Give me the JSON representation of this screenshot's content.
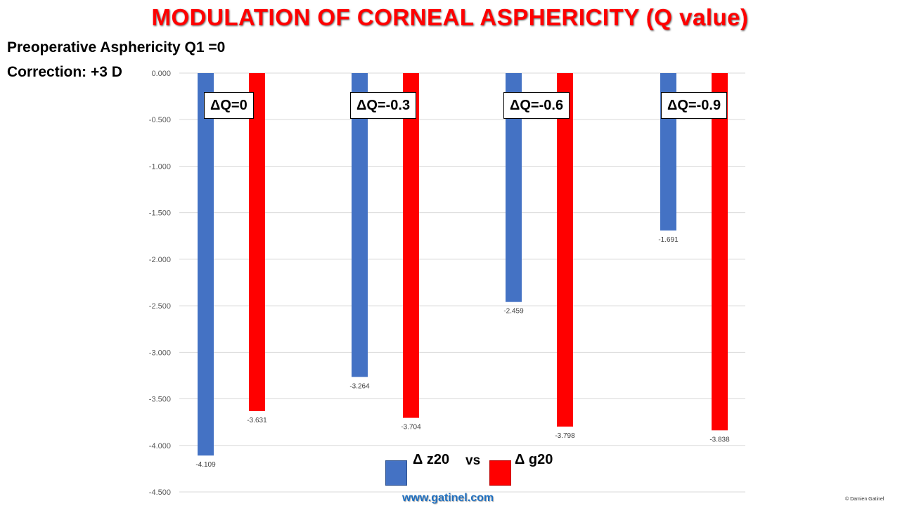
{
  "title": "MODULATION OF CORNEAL ASPHERICITY (Q value)",
  "subtitle_lines": [
    "Preoperative Asphericity Q1 =0",
    "Correction: +3 D"
  ],
  "footer": {
    "website": "www.gatinel.com",
    "copyright": "© Damien Gatinel"
  },
  "legend": {
    "series1": "Δ z20",
    "vs": "vs",
    "series2": "Δ g20"
  },
  "colors": {
    "z20": "#4472c4",
    "g20": "#ff0000",
    "title": "#ff0000",
    "website": "#1f70c1",
    "grid": "#d9d9d9"
  },
  "chart_data": {
    "type": "bar",
    "title": "MODULATION OF CORNEAL ASPHERICITY (Q value)",
    "categories": [
      "ΔQ=0",
      "ΔQ=-0.3",
      "ΔQ=-0.6",
      "ΔQ=-0.9"
    ],
    "series": [
      {
        "name": "Δ z20",
        "values": [
          -4.109,
          -3.264,
          -2.459,
          -1.691
        ]
      },
      {
        "name": "Δ g20",
        "values": [
          -3.631,
          -3.704,
          -3.798,
          -3.838
        ]
      }
    ],
    "xlabel": "",
    "ylabel": "",
    "ylim": [
      -4.5,
      0
    ],
    "yticks": [
      "0.000",
      "-0.500",
      "-1.000",
      "-1.500",
      "-2.000",
      "-2.500",
      "-3.000",
      "-3.500",
      "-4.000",
      "-4.500"
    ],
    "grid": true,
    "legend_position": "bottom-center",
    "data_labels": [
      "-4.109",
      "-3.264",
      "-2.459",
      "-1.691",
      "-3.631",
      "-3.704",
      "-3.798",
      "-3.838"
    ]
  }
}
